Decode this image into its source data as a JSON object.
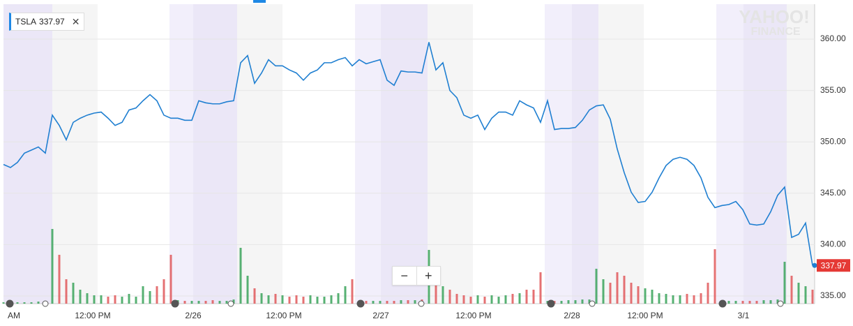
{
  "chart_data": {
    "type": "line",
    "legend_symbol": "TSLA",
    "last_price": 337.97,
    "last_price_label": "337.97",
    "watermark": [
      "YAHOO!",
      "FINANCE"
    ],
    "zoom_buttons": [
      "−",
      "+"
    ],
    "close_icon": "✕",
    "series": [
      {
        "name": "TSLA",
        "color": "#1f7fd1",
        "values": [
          347.8,
          347.5,
          348.0,
          348.9,
          349.2,
          349.5,
          348.9,
          352.6,
          351.6,
          350.2,
          351.9,
          352.3,
          352.6,
          352.8,
          352.9,
          352.3,
          351.6,
          351.9,
          353.1,
          353.3,
          354.0,
          354.6,
          354.0,
          352.6,
          352.3,
          352.3,
          352.1,
          352.1,
          354.0,
          353.8,
          353.7,
          353.7,
          353.9,
          354.0,
          357.7,
          358.4,
          355.7,
          356.7,
          358.0,
          357.4,
          357.4,
          357.0,
          356.7,
          356.0,
          356.7,
          357.0,
          357.7,
          357.7,
          358.0,
          358.2,
          357.4,
          358.0,
          357.6,
          357.8,
          358.0,
          356.0,
          355.5,
          356.9,
          356.8,
          356.8,
          356.7,
          359.7,
          357.0,
          357.7,
          355.0,
          354.3,
          352.6,
          352.3,
          352.6,
          351.2,
          352.3,
          352.9,
          352.9,
          352.6,
          354.0,
          353.6,
          353.3,
          351.9,
          354.0,
          351.2,
          351.3,
          351.3,
          351.4,
          352.1,
          353.1,
          353.5,
          353.6,
          352.2,
          349.3,
          347.0,
          345.1,
          344.1,
          344.2,
          345.1,
          346.5,
          347.7,
          348.3,
          348.5,
          348.3,
          347.7,
          346.5,
          344.6,
          343.6,
          343.8,
          343.9,
          344.2,
          343.4,
          342.0,
          341.9,
          342.0,
          343.2,
          344.8,
          345.6,
          340.7,
          341.0,
          342.1,
          337.97
        ]
      }
    ],
    "volume": {
      "up_color": "#3aa35b",
      "down_color": "#e0585b",
      "vlim": [
        0,
        110
      ],
      "values": [
        2,
        2,
        2,
        2,
        2,
        3,
        3,
        107,
        70,
        35,
        30,
        20,
        15,
        12,
        12,
        10,
        12,
        10,
        14,
        10,
        25,
        18,
        25,
        35,
        70,
        5,
        4,
        4,
        4,
        4,
        5,
        4,
        4,
        6,
        80,
        40,
        22,
        15,
        12,
        14,
        12,
        10,
        12,
        10,
        12,
        10,
        10,
        12,
        15,
        25,
        35,
        4,
        4,
        4,
        4,
        4,
        4,
        5,
        5,
        5,
        6,
        77,
        35,
        25,
        20,
        14,
        12,
        10,
        12,
        10,
        12,
        10,
        12,
        14,
        15,
        20,
        20,
        45,
        4,
        4,
        4,
        5,
        5,
        6,
        6,
        50,
        35,
        30,
        45,
        40,
        30,
        25,
        22,
        20,
        15,
        14,
        12,
        12,
        14,
        12,
        15,
        30,
        78,
        5,
        4,
        4,
        4,
        4,
        4,
        5,
        5,
        6,
        60,
        40,
        30,
        25,
        20
      ]
    },
    "xlim": [
      0,
      116
    ],
    "xticks": [
      {
        "value": 1.5,
        "label": "AM"
      },
      {
        "value": 12.8,
        "label": "12:00 PM"
      },
      {
        "value": 27.2,
        "label": "2/26"
      },
      {
        "value": 40.2,
        "label": "12:00 PM"
      },
      {
        "value": 54.1,
        "label": "2/27"
      },
      {
        "value": 67.4,
        "label": "12:00 PM"
      },
      {
        "value": 81.5,
        "label": "2/28"
      },
      {
        "value": 92,
        "label": "12:00 PM"
      },
      {
        "value": 106.1,
        "label": "3/1"
      }
    ],
    "ylim": [
      334.25,
      363.4
    ],
    "yticks": [
      {
        "value": 335,
        "label": "335.00"
      },
      {
        "value": 340,
        "label": "340.00"
      },
      {
        "value": 345,
        "label": "345.00"
      },
      {
        "value": 350,
        "label": "350.00"
      },
      {
        "value": 355,
        "label": "355.00"
      },
      {
        "value": 360,
        "label": "360.00"
      }
    ],
    "grid": true
  }
}
